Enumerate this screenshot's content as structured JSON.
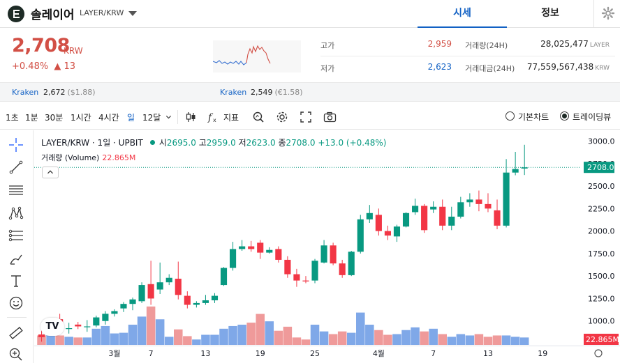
{
  "header": {
    "coin_name": "솔레이어",
    "pair": "LAYER/KRW",
    "tabs": [
      {
        "label": "시세",
        "active": true
      },
      {
        "label": "정보",
        "active": false
      }
    ]
  },
  "price": {
    "current": "2,708",
    "unit": "KRW",
    "change_pct": "+0.48%",
    "change_arrow": "▲",
    "change_abs": "13"
  },
  "stats": {
    "high_label": "고가",
    "high_value": "2,959",
    "low_label": "저가",
    "low_value": "2,623",
    "volume_label": "거래량(24H)",
    "volume_value": "28,025,477",
    "volume_unit": "LAYER",
    "amount_label": "거래대금(24H)",
    "amount_value": "77,559,567,438",
    "amount_unit": "KRW"
  },
  "exchanges": [
    {
      "name": "Kraken",
      "price": "2,672",
      "sub": "($1.88)"
    },
    {
      "name": "Kraken",
      "price": "2,549",
      "sub": "(€1.58)"
    }
  ],
  "toolbar": {
    "timeframes": [
      {
        "label": "1초",
        "active": false
      },
      {
        "label": "1분",
        "active": false
      },
      {
        "label": "30분",
        "active": false
      },
      {
        "label": "1시간",
        "active": false
      },
      {
        "label": "4시간",
        "active": false
      },
      {
        "label": "일",
        "active": true
      },
      {
        "label": "12달",
        "active": false
      }
    ],
    "indicator_label": "지표",
    "view_basic": "기본차트",
    "view_tradingview": "트레이딩뷰",
    "selected_view": "트레이딩뷰"
  },
  "chart_legend": {
    "symbol": "LAYER/KRW · 1일 · UPBIT",
    "open_label": "시",
    "open": "2695.0",
    "high_label": "고",
    "high": "2959.0",
    "low_label": "저",
    "low": "2623.0",
    "close_label": "종",
    "close": "2708.0",
    "change": "+13.0 (+0.48%)",
    "volume_label": "거래량 (Volume)",
    "volume_value": "22.865M"
  },
  "colors": {
    "up": "#089981",
    "down": "#f23645",
    "accent": "#1261c4",
    "price_red": "#d24f45"
  },
  "chart_data": {
    "type": "candlestick",
    "y_ticks": [
      1000,
      1250,
      1500,
      1750,
      2000,
      2250,
      2500,
      2750,
      3000
    ],
    "y_tick_labels": [
      "1000.0",
      "1250.0",
      "1500.0",
      "1750.0",
      "2000.0",
      "2250.0",
      "2500.0",
      "2750.0",
      "3000.0"
    ],
    "y_range": [
      750,
      3120
    ],
    "x_ticks": [
      {
        "label": "3월",
        "index": 8
      },
      {
        "label": "7",
        "index": 12
      },
      {
        "label": "13",
        "index": 18
      },
      {
        "label": "19",
        "index": 24
      },
      {
        "label": "25",
        "index": 30
      },
      {
        "label": "4월",
        "index": 37
      },
      {
        "label": "7",
        "index": 43
      },
      {
        "label": "13",
        "index": 49
      },
      {
        "label": "19",
        "index": 55
      }
    ],
    "x_slots": 60,
    "last_price_label": "2708.0",
    "last_price": 2708,
    "volume_axis_label": "22.865M",
    "volume_max": 60,
    "candles": [
      {
        "o": 850,
        "h": 900,
        "l": 770,
        "c": 820,
        "v": 14
      },
      {
        "o": 900,
        "h": 1000,
        "l": 870,
        "c": 1010,
        "v": 15
      },
      {
        "o": 1020,
        "h": 1080,
        "l": 870,
        "c": 900,
        "v": 14
      },
      {
        "o": 920,
        "h": 980,
        "l": 860,
        "c": 920,
        "v": 12
      },
      {
        "o": 960,
        "h": 990,
        "l": 910,
        "c": 940,
        "v": 11
      },
      {
        "o": 940,
        "h": 1010,
        "l": 880,
        "c": 940,
        "v": 11
      },
      {
        "o": 950,
        "h": 1060,
        "l": 930,
        "c": 1040,
        "v": 24
      },
      {
        "o": 1000,
        "h": 1110,
        "l": 960,
        "c": 1080,
        "v": 28
      },
      {
        "o": 1080,
        "h": 1130,
        "l": 1050,
        "c": 1110,
        "v": 17
      },
      {
        "o": 1140,
        "h": 1210,
        "l": 1100,
        "c": 1190,
        "v": 18
      },
      {
        "o": 1190,
        "h": 1260,
        "l": 1120,
        "c": 1240,
        "v": 30
      },
      {
        "o": 1220,
        "h": 1430,
        "l": 1200,
        "c": 1400,
        "v": 42
      },
      {
        "o": 1410,
        "h": 1670,
        "l": 1180,
        "c": 1250,
        "v": 57
      },
      {
        "o": 1350,
        "h": 1650,
        "l": 1300,
        "c": 1430,
        "v": 38
      },
      {
        "o": 1430,
        "h": 1520,
        "l": 1400,
        "c": 1480,
        "v": 12
      },
      {
        "o": 1470,
        "h": 1660,
        "l": 1240,
        "c": 1290,
        "v": 23
      },
      {
        "o": 1280,
        "h": 1330,
        "l": 1140,
        "c": 1180,
        "v": 13
      },
      {
        "o": 1180,
        "h": 1220,
        "l": 1150,
        "c": 1200,
        "v": 8
      },
      {
        "o": 1200,
        "h": 1290,
        "l": 1180,
        "c": 1230,
        "v": 15
      },
      {
        "o": 1230,
        "h": 1310,
        "l": 1200,
        "c": 1280,
        "v": 15
      },
      {
        "o": 1400,
        "h": 1600,
        "l": 1390,
        "c": 1590,
        "v": 24
      },
      {
        "o": 1590,
        "h": 1880,
        "l": 1560,
        "c": 1800,
        "v": 28
      },
      {
        "o": 1800,
        "h": 1900,
        "l": 1780,
        "c": 1830,
        "v": 30
      },
      {
        "o": 1830,
        "h": 1890,
        "l": 1770,
        "c": 1800,
        "v": 33
      },
      {
        "o": 1870,
        "h": 1900,
        "l": 1690,
        "c": 1760,
        "v": 46
      },
      {
        "o": 1760,
        "h": 1820,
        "l": 1750,
        "c": 1790,
        "v": 35
      },
      {
        "o": 1800,
        "h": 1830,
        "l": 1650,
        "c": 1680,
        "v": 21
      },
      {
        "o": 1680,
        "h": 1720,
        "l": 1480,
        "c": 1520,
        "v": 27
      },
      {
        "o": 1520,
        "h": 1580,
        "l": 1380,
        "c": 1450,
        "v": 11
      },
      {
        "o": 1450,
        "h": 1500,
        "l": 1420,
        "c": 1440,
        "v": 8
      },
      {
        "o": 1450,
        "h": 1690,
        "l": 1420,
        "c": 1670,
        "v": 30
      },
      {
        "o": 1650,
        "h": 1900,
        "l": 1640,
        "c": 1840,
        "v": 20
      },
      {
        "o": 1840,
        "h": 1870,
        "l": 1620,
        "c": 1640,
        "v": 16
      },
      {
        "o": 1640,
        "h": 1680,
        "l": 1480,
        "c": 1510,
        "v": 20
      },
      {
        "o": 1510,
        "h": 1780,
        "l": 1500,
        "c": 1770,
        "v": 18
      },
      {
        "o": 1770,
        "h": 2180,
        "l": 1750,
        "c": 2130,
        "v": 48
      },
      {
        "o": 2130,
        "h": 2290,
        "l": 2090,
        "c": 2200,
        "v": 30
      },
      {
        "o": 2180,
        "h": 2250,
        "l": 1950,
        "c": 2000,
        "v": 22
      },
      {
        "o": 2000,
        "h": 2060,
        "l": 1900,
        "c": 1950,
        "v": 15
      },
      {
        "o": 1940,
        "h": 2070,
        "l": 1880,
        "c": 2050,
        "v": 16
      },
      {
        "o": 2050,
        "h": 2210,
        "l": 2040,
        "c": 2200,
        "v": 22
      },
      {
        "o": 2210,
        "h": 2360,
        "l": 2180,
        "c": 2280,
        "v": 26
      },
      {
        "o": 2280,
        "h": 2300,
        "l": 1980,
        "c": 2010,
        "v": 20
      },
      {
        "o": 2240,
        "h": 2330,
        "l": 2200,
        "c": 2270,
        "v": 24
      },
      {
        "o": 2270,
        "h": 2350,
        "l": 2010,
        "c": 2060,
        "v": 16
      },
      {
        "o": 2060,
        "h": 2270,
        "l": 2010,
        "c": 2160,
        "v": 12
      },
      {
        "o": 2160,
        "h": 2380,
        "l": 2140,
        "c": 2320,
        "v": 16
      },
      {
        "o": 2320,
        "h": 2420,
        "l": 2270,
        "c": 2350,
        "v": 14
      },
      {
        "o": 2350,
        "h": 2450,
        "l": 2220,
        "c": 2300,
        "v": 16
      },
      {
        "o": 2300,
        "h": 2420,
        "l": 2210,
        "c": 2250,
        "v": 12
      },
      {
        "o": 2230,
        "h": 2350,
        "l": 2020,
        "c": 2060,
        "v": 14
      },
      {
        "o": 2060,
        "h": 2800,
        "l": 2040,
        "c": 2650,
        "v": 14
      },
      {
        "o": 2650,
        "h": 2880,
        "l": 2620,
        "c": 2690,
        "v": 12
      },
      {
        "o": 2695,
        "h": 2959,
        "l": 2623,
        "c": 2708,
        "v": 11
      }
    ],
    "grid": false
  },
  "side_axis": {
    "settings_icon": "settings-circle-icon"
  }
}
